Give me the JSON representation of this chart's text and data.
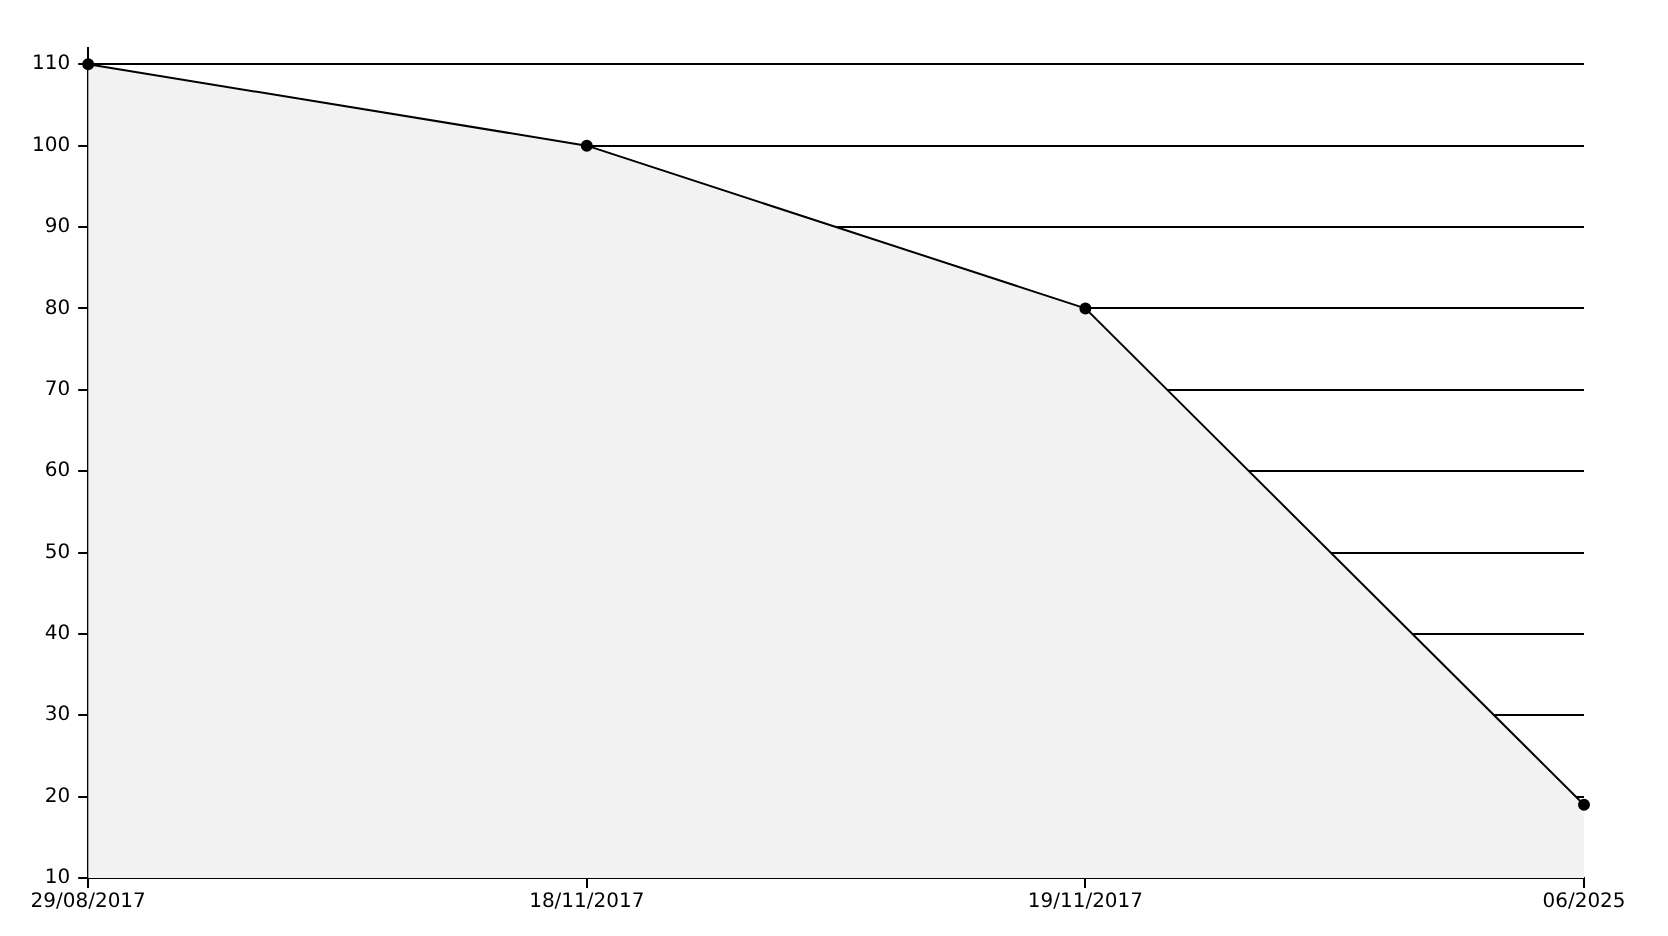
{
  "chart_data": {
    "type": "area",
    "categories": [
      "29/08/2017",
      "18/11/2017",
      "19/11/2017",
      "06/2025"
    ],
    "series": [
      {
        "color": "#000000",
        "values": [
          110,
          100,
          80,
          19
        ]
      }
    ],
    "ylim": [
      10,
      112
    ],
    "yticks": [
      10,
      20,
      30,
      40,
      50,
      60,
      70,
      80,
      90,
      100,
      110
    ],
    "grid": "y",
    "legend": false,
    "marker": "circle",
    "line_style": "solid"
  }
}
